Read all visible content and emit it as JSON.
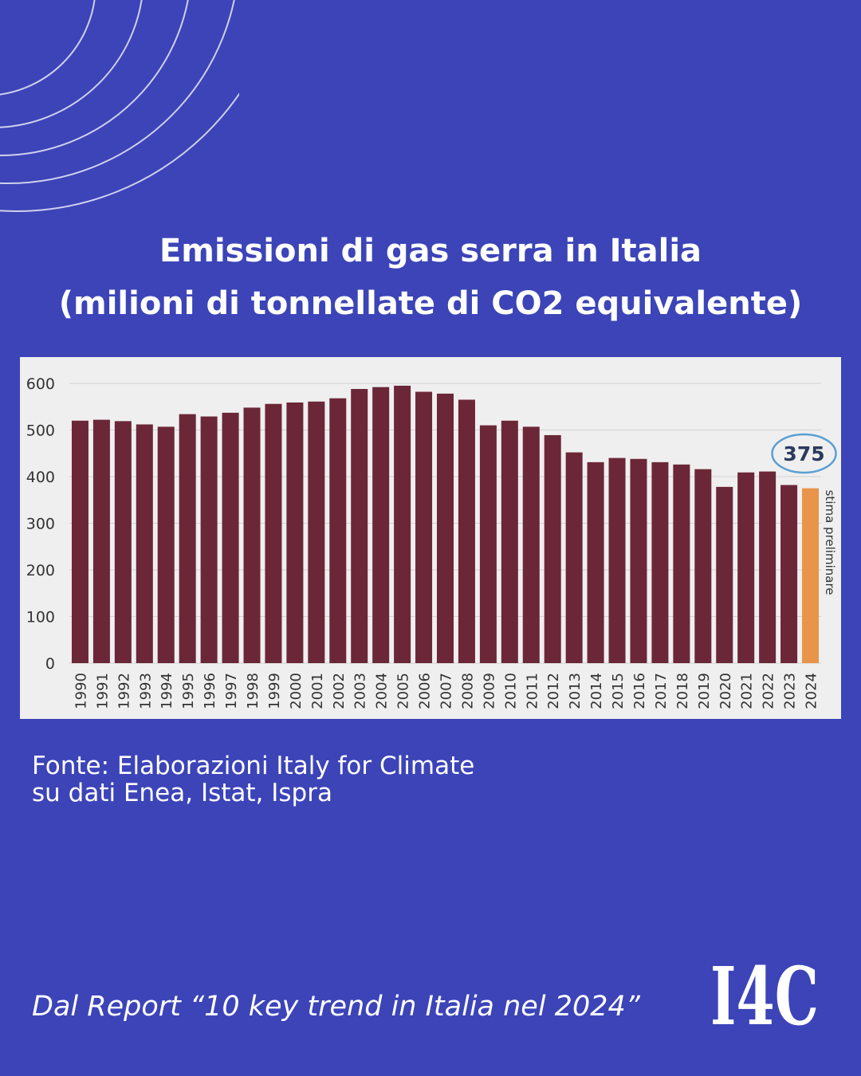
{
  "title": {
    "line1": "Emissioni di gas serra in Italia",
    "line2": "(milioni di tonnellate di CO2 equivalente)"
  },
  "source": {
    "line1": "Fonte: Elaborazioni Italy for Climate",
    "line2": "su dati Enea, Istat, Ispra"
  },
  "footer": {
    "text": "Dal Report “10 key trend in Italia nel 2024”"
  },
  "logo": {
    "text": "I4C"
  },
  "colors": {
    "background": "#3c44b8",
    "bar": "#6b2737",
    "highlight_bar": "#e8944a",
    "callout": "#2b3a5e",
    "panel": "#efefef"
  },
  "chart_data": {
    "type": "bar",
    "title": "",
    "xlabel": "",
    "ylabel": "",
    "ylim": [
      0,
      600
    ],
    "yticks": [
      0,
      100,
      200,
      300,
      400,
      500,
      600
    ],
    "grid": true,
    "categories": [
      "1990",
      "1991",
      "1992",
      "1993",
      "1994",
      "1995",
      "1996",
      "1997",
      "1998",
      "1999",
      "2000",
      "2001",
      "2002",
      "2003",
      "2004",
      "2005",
      "2006",
      "2007",
      "2008",
      "2009",
      "2010",
      "2011",
      "2012",
      "2013",
      "2014",
      "2015",
      "2016",
      "2017",
      "2018",
      "2019",
      "2020",
      "2021",
      "2022",
      "2023",
      "2024"
    ],
    "values": [
      520,
      522,
      519,
      512,
      507,
      534,
      529,
      537,
      548,
      556,
      559,
      561,
      568,
      588,
      592,
      595,
      582,
      578,
      565,
      510,
      520,
      507,
      489,
      452,
      431,
      440,
      438,
      431,
      426,
      416,
      378,
      409,
      411,
      382,
      375
    ],
    "highlight": {
      "category": "2024",
      "value_label": "375",
      "annotation": "stima preliminare"
    }
  }
}
